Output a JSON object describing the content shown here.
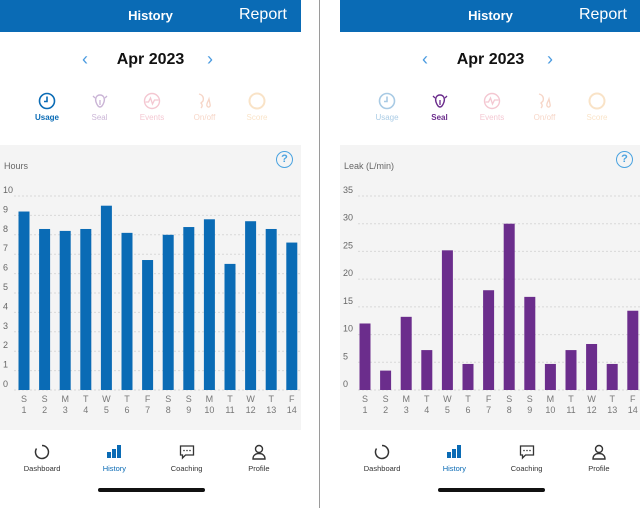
{
  "header": {
    "title": "History",
    "report": "Report"
  },
  "month": "Apr 2023",
  "tabs": [
    {
      "label": "Usage",
      "icon": "clock-icon"
    },
    {
      "label": "Seal",
      "icon": "mask-seal-icon"
    },
    {
      "label": "Events",
      "icon": "events-wave-icon"
    },
    {
      "label": "On/off",
      "icon": "face-mask-icon"
    },
    {
      "label": "Score",
      "icon": "score-ring-icon"
    }
  ],
  "nav": [
    {
      "label": "Dashboard",
      "icon": "ring-icon"
    },
    {
      "label": "History",
      "icon": "bar-chart-icon"
    },
    {
      "label": "Coaching",
      "icon": "chat-icon"
    },
    {
      "label": "Profile",
      "icon": "person-icon"
    }
  ],
  "colors": {
    "header": "#0a6bb5",
    "usage": "#0a6bb5",
    "seal": "#6b2d8c",
    "events": "#e0607e",
    "onoff": "#e88a60",
    "score": "#f0b060"
  },
  "panels": [
    {
      "active_tab": "Usage",
      "active_color": "#0a6bb5"
    },
    {
      "active_tab": "Seal",
      "active_color": "#6b2d8c"
    }
  ],
  "chart_data": [
    {
      "type": "bar",
      "ylabel": "Hours",
      "ylim": [
        0,
        10
      ],
      "yticks": [
        0,
        1,
        2,
        3,
        4,
        5,
        6,
        7,
        8,
        9,
        10
      ],
      "grid": true,
      "categories": [
        [
          "S",
          "1"
        ],
        [
          "S",
          "2"
        ],
        [
          "M",
          "3"
        ],
        [
          "T",
          "4"
        ],
        [
          "W",
          "5"
        ],
        [
          "T",
          "6"
        ],
        [
          "F",
          "7"
        ],
        [
          "S",
          "8"
        ],
        [
          "S",
          "9"
        ],
        [
          "M",
          "10"
        ],
        [
          "T",
          "11"
        ],
        [
          "W",
          "12"
        ],
        [
          "T",
          "13"
        ],
        [
          "F",
          "14"
        ]
      ],
      "values": [
        9.2,
        8.3,
        8.2,
        8.3,
        9.5,
        8.1,
        6.7,
        8.0,
        8.4,
        8.8,
        6.5,
        8.7,
        8.3,
        7.6
      ],
      "color": "#0a6bb5"
    },
    {
      "type": "bar",
      "ylabel": "Leak (L/min)",
      "ylim": [
        0,
        35
      ],
      "yticks": [
        0,
        5,
        10,
        15,
        20,
        25,
        30,
        35
      ],
      "grid": true,
      "categories": [
        [
          "S",
          "1"
        ],
        [
          "S",
          "2"
        ],
        [
          "M",
          "3"
        ],
        [
          "T",
          "4"
        ],
        [
          "W",
          "5"
        ],
        [
          "T",
          "6"
        ],
        [
          "F",
          "7"
        ],
        [
          "S",
          "8"
        ],
        [
          "S",
          "9"
        ],
        [
          "M",
          "10"
        ],
        [
          "T",
          "11"
        ],
        [
          "W",
          "12"
        ],
        [
          "T",
          "13"
        ],
        [
          "F",
          "14"
        ]
      ],
      "values": [
        12,
        3.5,
        13.2,
        7.2,
        25.2,
        4.7,
        18,
        30,
        16.8,
        4.7,
        7.2,
        8.3,
        4.7,
        14.3
      ],
      "color": "#6b2d8c"
    }
  ]
}
